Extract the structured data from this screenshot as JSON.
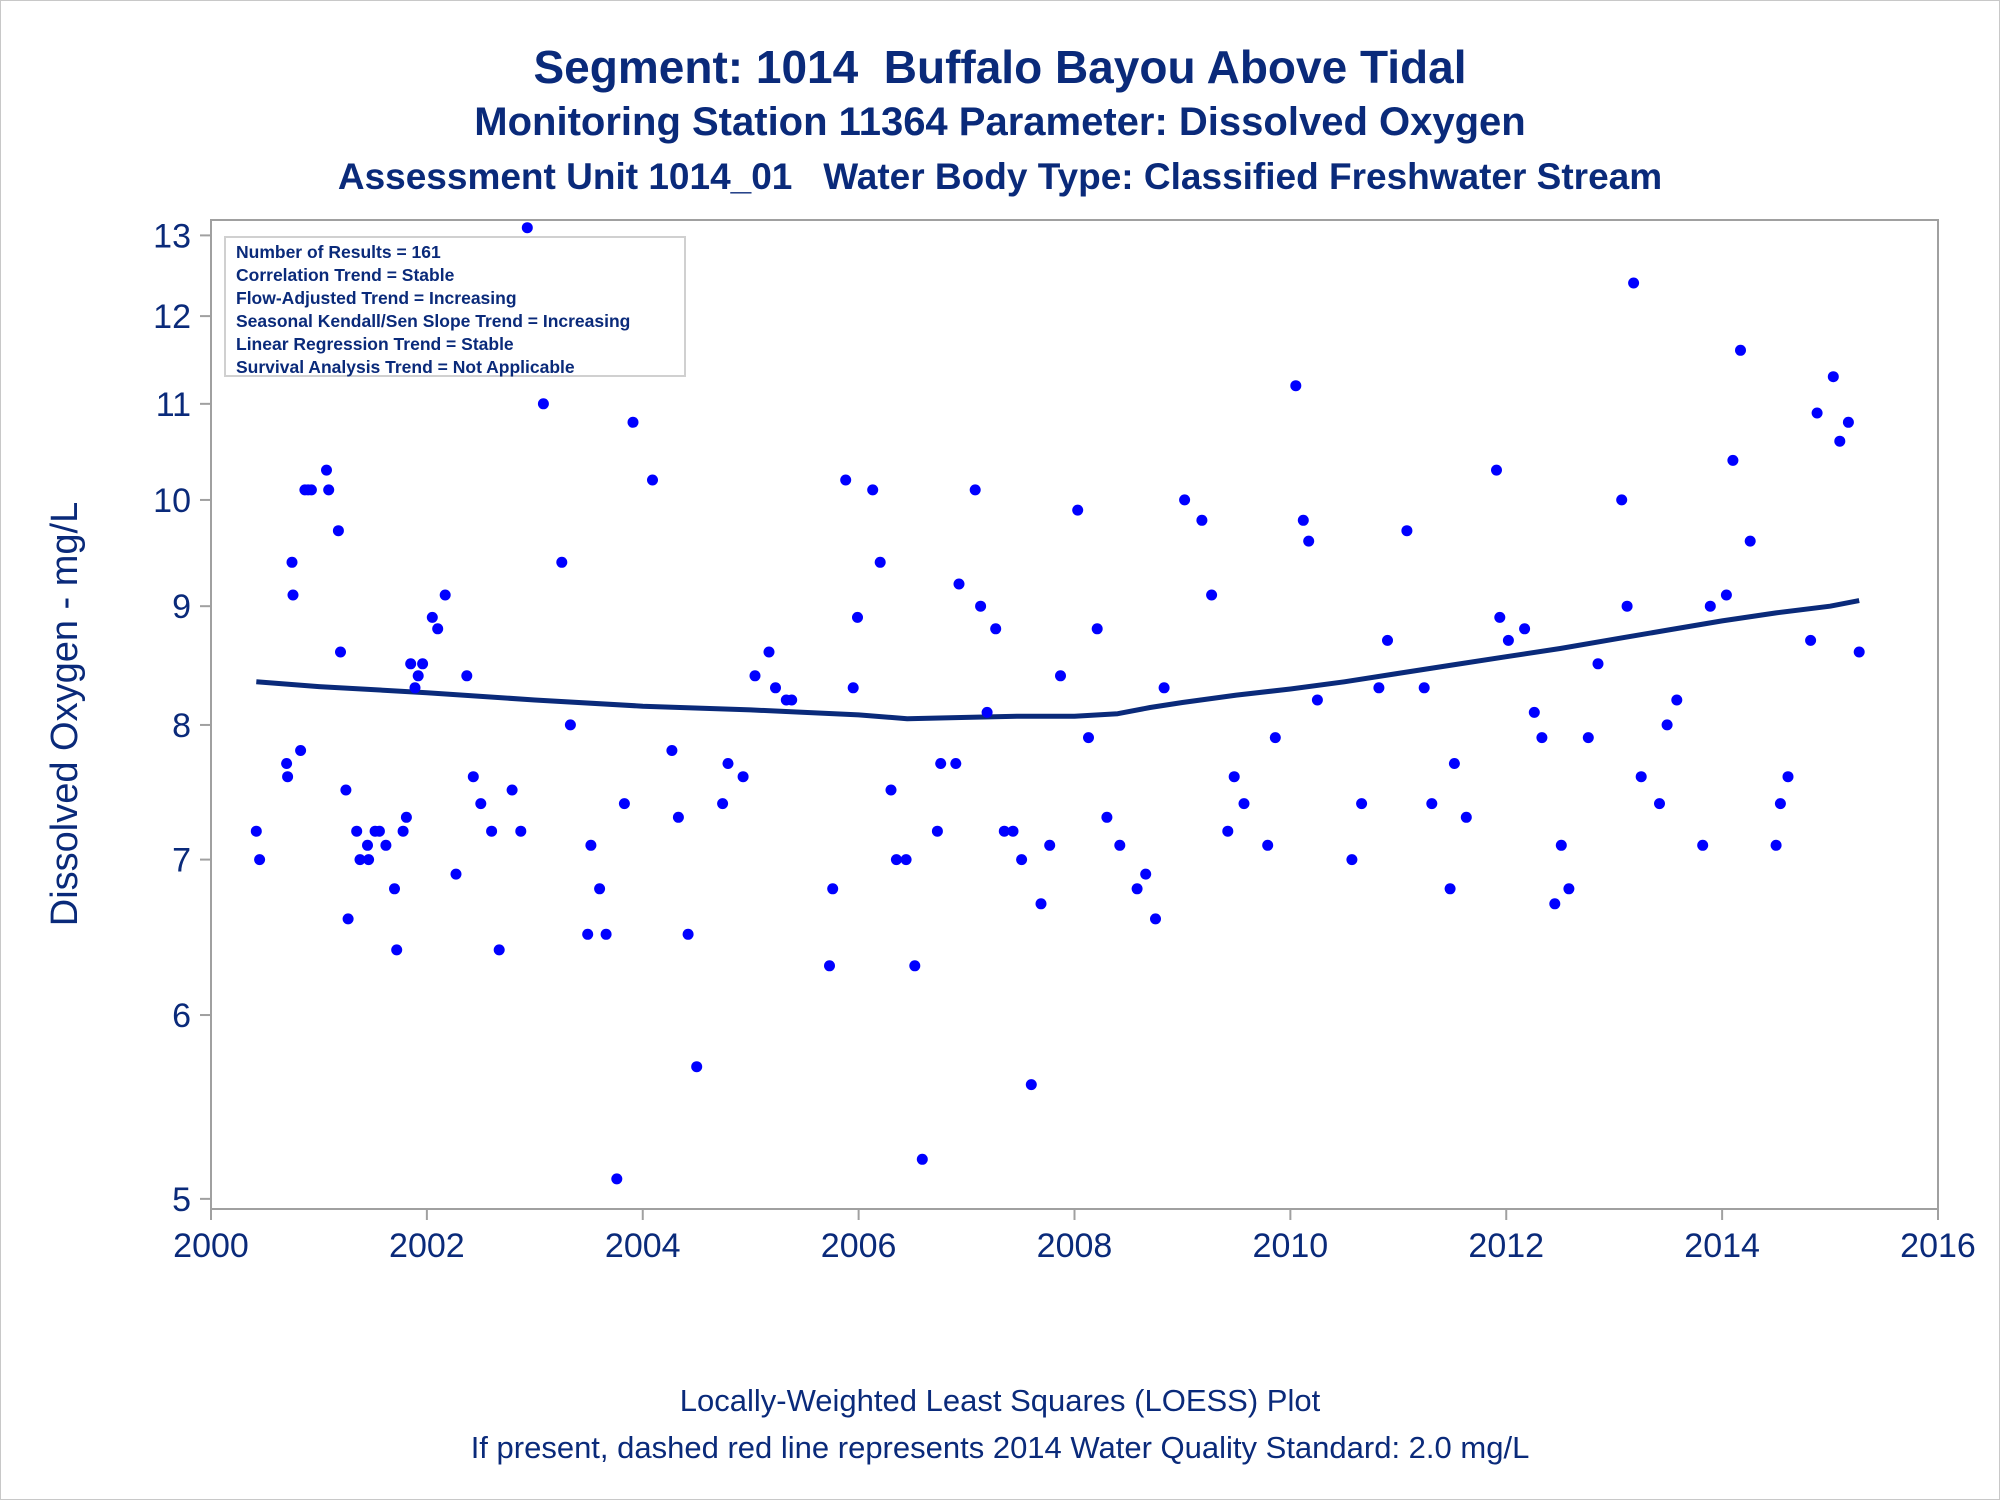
{
  "header": {
    "title": "Segment: 1014  Buffalo Bayou Above Tidal",
    "subtitle": "Monitoring Station 11364 Parameter: Dissolved Oxygen",
    "subtitle2": "Assessment Unit 1014_01   Water Body Type: Classified Freshwater Stream"
  },
  "stats_box": [
    "Number of Results = 161",
    "Correlation Trend = Stable",
    "Flow-Adjusted Trend = Increasing",
    "Seasonal Kendall/Sen Slope Trend = Increasing",
    "Linear Regression Trend = Stable",
    "Survival Analysis Trend = Not Applicable"
  ],
  "footer": {
    "line1": "Locally-Weighted Least Squares (LOESS) Plot",
    "line2": "If present, dashed red line represents 2014 Water Quality Standard: 2.0 mg/L"
  },
  "colors": {
    "points": "#0000ff",
    "loess": "#0a2a7a",
    "text": "#0a2a7a",
    "axis": "#a0a0a0"
  },
  "chart_data": {
    "type": "scatter",
    "ylabel": "Dissolved Oxygen - mg/L",
    "xlabel": "",
    "y_scale": "log",
    "xlim": [
      2000,
      2016
    ],
    "ylim": [
      4.95,
      13.2
    ],
    "x_ticks": [
      "2000",
      "2002",
      "2004",
      "2006",
      "2008",
      "2010",
      "2012",
      "2014",
      "2016"
    ],
    "y_ticks": [
      "5",
      "6",
      "7",
      "8",
      "9",
      "10",
      "11",
      "12",
      "13"
    ],
    "grid": false,
    "series": [
      {
        "kind": "scatter",
        "x": [
          2000.42,
          2000.45,
          2000.7,
          2000.71,
          2000.75,
          2000.76,
          2000.83,
          2000.87,
          2000.9,
          2000.93,
          2001.02,
          2001.02,
          2001.07,
          2001.09,
          2001.18,
          2001.2,
          2001.25,
          2001.27,
          2001.35,
          2001.38,
          2001.45,
          2001.46,
          2001.52,
          2001.56,
          2001.62,
          2001.7,
          2001.72,
          2001.78,
          2001.81,
          2001.85,
          2001.89,
          2001.92,
          2001.96,
          2002.05,
          2002.1,
          2002.17,
          2002.27,
          2002.37,
          2002.43,
          2002.5,
          2002.6,
          2002.67,
          2002.79,
          2002.87,
          2002.93,
          2003.08,
          2003.14,
          2003.25,
          2003.33,
          2003.49,
          2003.52,
          2003.6,
          2003.66,
          2003.76,
          2003.83,
          2003.91,
          2004.0,
          2004.09,
          2004.27,
          2004.33,
          2004.42,
          2004.5,
          2004.74,
          2004.79,
          2004.93,
          2005.04,
          2005.17,
          2005.23,
          2005.33,
          2005.38,
          2005.73,
          2005.76,
          2005.88,
          2005.95,
          2005.99,
          2006.13,
          2006.2,
          2006.3,
          2006.35,
          2006.44,
          2006.52,
          2006.59,
          2006.73,
          2006.76,
          2006.9,
          2006.93,
          2007.08,
          2007.13,
          2007.19,
          2007.27,
          2007.35,
          2007.43,
          2007.51,
          2007.6,
          2007.69,
          2007.77,
          2007.87,
          2008.03,
          2008.13,
          2008.21,
          2008.3,
          2008.42,
          2008.58,
          2008.66,
          2008.75,
          2008.83,
          2009.02,
          2009.18,
          2009.27,
          2009.42,
          2009.48,
          2009.57,
          2009.79,
          2009.86,
          2010.05,
          2010.12,
          2010.17,
          2010.25,
          2010.57,
          2010.66,
          2010.82,
          2010.9,
          2011.08,
          2011.24,
          2011.31,
          2011.48,
          2011.52,
          2011.63,
          2011.91,
          2011.94,
          2012.02,
          2012.17,
          2012.26,
          2012.33,
          2012.45,
          2012.51,
          2012.58,
          2012.76,
          2012.85,
          2013.07,
          2013.12,
          2013.18,
          2013.25,
          2013.42,
          2013.49,
          2013.58,
          2013.82,
          2013.89,
          2014.04,
          2014.1,
          2014.17,
          2014.26,
          2014.5,
          2014.54,
          2014.61,
          2014.82,
          2014.88,
          2015.03,
          2015.09,
          2015.17,
          2015.27
        ],
        "y": [
          7.2,
          7.0,
          7.7,
          7.6,
          9.4,
          9.1,
          7.8,
          10.1,
          10.1,
          10.1,
          12.2,
          12.1,
          10.3,
          10.1,
          9.7,
          8.6,
          7.5,
          6.6,
          7.2,
          7.0,
          7.1,
          7.0,
          7.2,
          7.2,
          7.1,
          6.8,
          6.4,
          7.2,
          7.3,
          8.5,
          8.3,
          8.4,
          8.5,
          8.9,
          8.8,
          9.1,
          6.9,
          8.4,
          7.6,
          7.4,
          7.2,
          6.4,
          7.5,
          7.2,
          13.1,
          11.0,
          11.4,
          9.4,
          8.0,
          6.5,
          7.1,
          6.8,
          6.5,
          5.1,
          7.4,
          10.8,
          11.4,
          10.2,
          7.8,
          7.3,
          6.5,
          5.7,
          7.4,
          7.7,
          7.6,
          8.4,
          8.6,
          8.3,
          8.2,
          8.2,
          6.3,
          6.8,
          10.2,
          8.3,
          8.9,
          10.1,
          9.4,
          7.5,
          7.0,
          7.0,
          6.3,
          5.2,
          7.2,
          7.7,
          7.7,
          9.2,
          10.1,
          9.0,
          8.1,
          8.8,
          7.2,
          7.2,
          7.0,
          5.6,
          6.7,
          7.1,
          8.4,
          9.9,
          7.9,
          8.8,
          7.3,
          7.1,
          6.8,
          6.9,
          6.6,
          8.3,
          10.0,
          9.8,
          9.1,
          7.2,
          7.6,
          7.4,
          7.1,
          7.9,
          11.2,
          9.8,
          9.6,
          8.2,
          7.0,
          7.4,
          8.3,
          8.7,
          9.7,
          8.3,
          7.4,
          6.8,
          7.7,
          7.3,
          10.3,
          8.9,
          8.7,
          8.8,
          8.1,
          7.9,
          6.7,
          7.1,
          6.8,
          7.9,
          8.5,
          10.0,
          9.0,
          12.4,
          7.6,
          7.4,
          8.0,
          8.2,
          7.1,
          9.0,
          9.1,
          10.4,
          11.6,
          9.6,
          7.1,
          7.4,
          7.6,
          8.7,
          10.9,
          11.3,
          10.6,
          10.8,
          8.6
        ]
      },
      {
        "kind": "line",
        "name": "",
        "x": [
          2000.42,
          2001.0,
          2002.0,
          2003.0,
          2004.0,
          2005.0,
          2005.5,
          2006.0,
          2006.45,
          2007.0,
          2007.5,
          2008.0,
          2008.4,
          2008.7,
          2009.0,
          2009.5,
          2010.0,
          2010.5,
          2011.0,
          2011.5,
          2012.0,
          2012.5,
          2013.0,
          2013.5,
          2014.0,
          2014.5,
          2015.0,
          2015.27
        ],
        "y": [
          8.35,
          8.31,
          8.26,
          8.2,
          8.15,
          8.12,
          8.1,
          8.08,
          8.05,
          8.06,
          8.07,
          8.07,
          8.09,
          8.14,
          8.18,
          8.24,
          8.29,
          8.35,
          8.42,
          8.49,
          8.56,
          8.63,
          8.71,
          8.79,
          8.87,
          8.94,
          9.0,
          9.05
        ]
      }
    ]
  }
}
